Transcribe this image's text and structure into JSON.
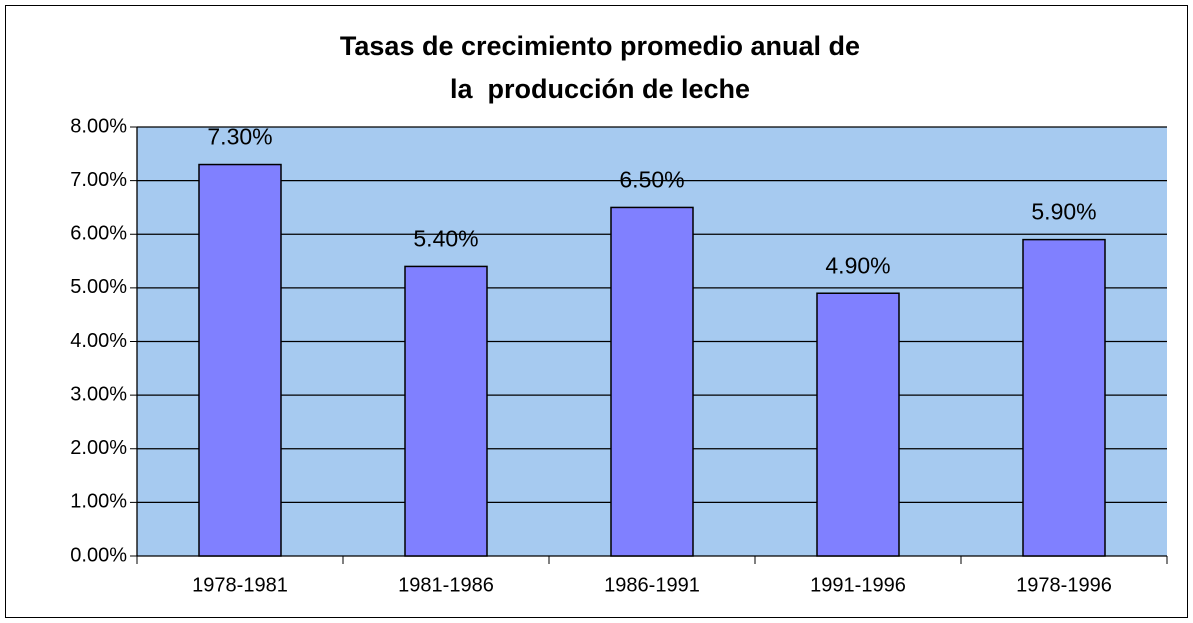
{
  "chart_data": {
    "type": "bar",
    "title": [
      "Tasas de crecimiento promedio anual de",
      "la  producción de leche"
    ],
    "categories": [
      "1978-1981",
      "1981-1986",
      "1986-1991",
      "1991-1996",
      "1978-1996"
    ],
    "values": [
      7.3,
      5.4,
      6.5,
      4.9,
      5.9
    ],
    "value_labels": [
      "7.30%",
      "5.40%",
      "6.50%",
      "4.90%",
      "5.90%"
    ],
    "color": "#8080ff",
    "ylim": [
      0,
      8
    ],
    "yticks": [
      {
        "value": 0,
        "label": "0.00%"
      },
      {
        "value": 1,
        "label": "1.00%"
      },
      {
        "value": 2,
        "label": "2.00%"
      },
      {
        "value": 3,
        "label": "3.00%"
      },
      {
        "value": 4,
        "label": "4.00%"
      },
      {
        "value": 5,
        "label": "5.00%"
      },
      {
        "value": 6,
        "label": "6.00%"
      },
      {
        "value": 7,
        "label": "7.00%"
      },
      {
        "value": 8,
        "label": "8.00%"
      }
    ],
    "grid": true
  }
}
